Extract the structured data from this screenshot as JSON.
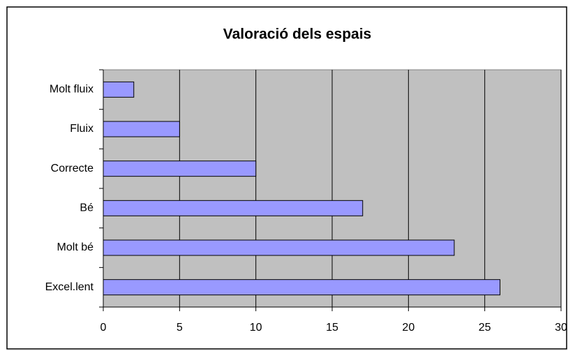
{
  "chart_data": {
    "type": "bar",
    "orientation": "horizontal",
    "title": "Valoració dels espais",
    "categories": [
      "Molt fluix",
      "Fluix",
      "Correcte",
      "Bé",
      "Molt bé",
      "Excel.lent"
    ],
    "values": [
      2,
      5,
      10,
      17,
      23,
      26
    ],
    "color": "#9999ff",
    "xlim": [
      0,
      30
    ],
    "xticks": [
      0,
      5,
      10,
      15,
      20,
      25,
      30
    ],
    "grid": true
  }
}
